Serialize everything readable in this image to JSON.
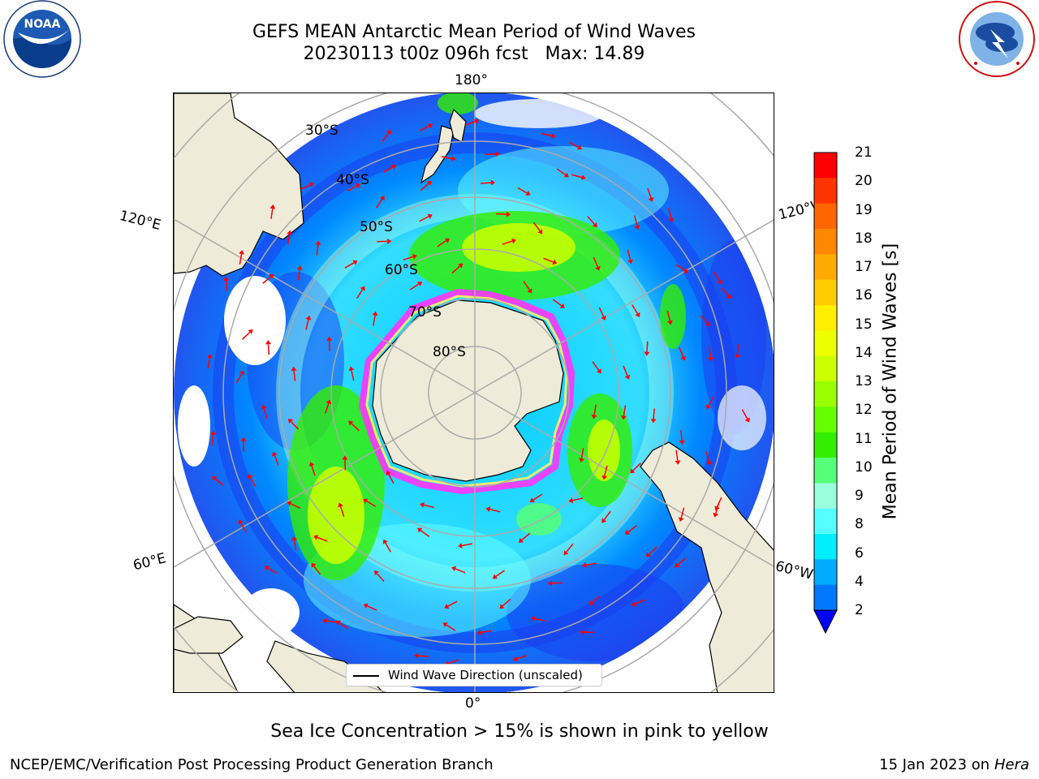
{
  "title": {
    "line1": "GEFS MEAN Antarctic Mean Period of Wind Waves",
    "line2": "20230113 t00z 096h fcst   Max: 14.89"
  },
  "logos": {
    "left": "noaa-logo",
    "right": "national-weather-service-logo"
  },
  "map": {
    "projection": "south-polar-stereographic",
    "longitude_labels": {
      "top": "180°",
      "bottom": "0°",
      "upper_left": "120°E",
      "lower_left": "60°E",
      "upper_right": "120°W",
      "lower_right": "60°W"
    },
    "latitude_labels": [
      "30°S",
      "40°S",
      "50°S",
      "60°S",
      "70°S",
      "80°S"
    ],
    "legend": "Wind Wave Direction (unscaled)",
    "arrow_color": "#ff0000",
    "land_color": "#eeecd9",
    "sea_ice_colors": [
      "#ff33ff",
      "#ffee66"
    ]
  },
  "colorbar": {
    "label": "Mean Period of Wind Waves [s]",
    "ticks": [
      "21",
      "20",
      "19",
      "18",
      "17",
      "16",
      "15",
      "14",
      "13",
      "12",
      "11",
      "10",
      "9",
      "8",
      "6",
      "4",
      "2"
    ],
    "colors": [
      "#ff0000",
      "#ff3300",
      "#ff6600",
      "#ff8800",
      "#ffaa00",
      "#ffcc00",
      "#ffee00",
      "#eeff00",
      "#ccff00",
      "#99ff00",
      "#66ff00",
      "#33ee00",
      "#55ff77",
      "#99ffdd",
      "#55ffff",
      "#00eeff",
      "#00aaff",
      "#0077ff",
      "#0000ff"
    ],
    "extend": "min"
  },
  "note": "Sea Ice Concentration > 15% is shown in pink to yellow",
  "footer": {
    "left": "NCEP/EMC/Verification Post Processing Product Generation Branch",
    "date": "15 Jan 2023 on",
    "host": "Hera"
  }
}
